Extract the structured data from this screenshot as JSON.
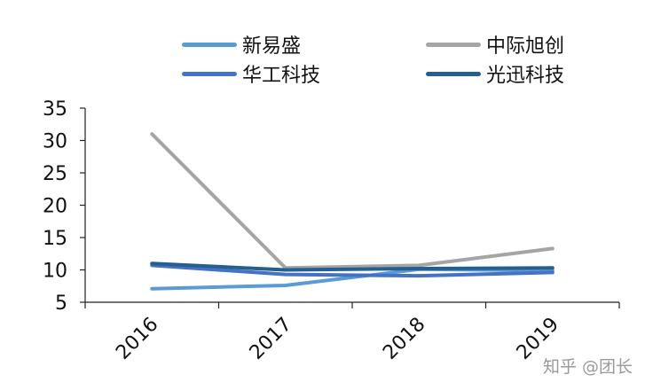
{
  "chart_data": {
    "type": "line",
    "title": "",
    "xlabel": "",
    "ylabel": "",
    "x": [
      "2016",
      "2017",
      "2018",
      "2019"
    ],
    "ylim": [
      5,
      35
    ],
    "yticks": [
      5,
      10,
      15,
      20,
      25,
      30,
      35
    ],
    "grid": false,
    "legend_position": "top",
    "series": [
      {
        "name": "新易盛",
        "color": "#5b9bd5",
        "values": [
          7.1,
          7.6,
          10.1,
          9.9
        ]
      },
      {
        "name": "中际旭创",
        "color": "#a5a5a5",
        "values": [
          31.0,
          10.3,
          10.7,
          13.3
        ]
      },
      {
        "name": "华工科技",
        "color": "#4472c4",
        "values": [
          10.7,
          9.3,
          9.1,
          9.6
        ]
      },
      {
        "name": "光迅科技",
        "color": "#255e91",
        "values": [
          11.0,
          10.0,
          10.2,
          10.3
        ]
      }
    ]
  },
  "watermark": "知乎 @团长"
}
